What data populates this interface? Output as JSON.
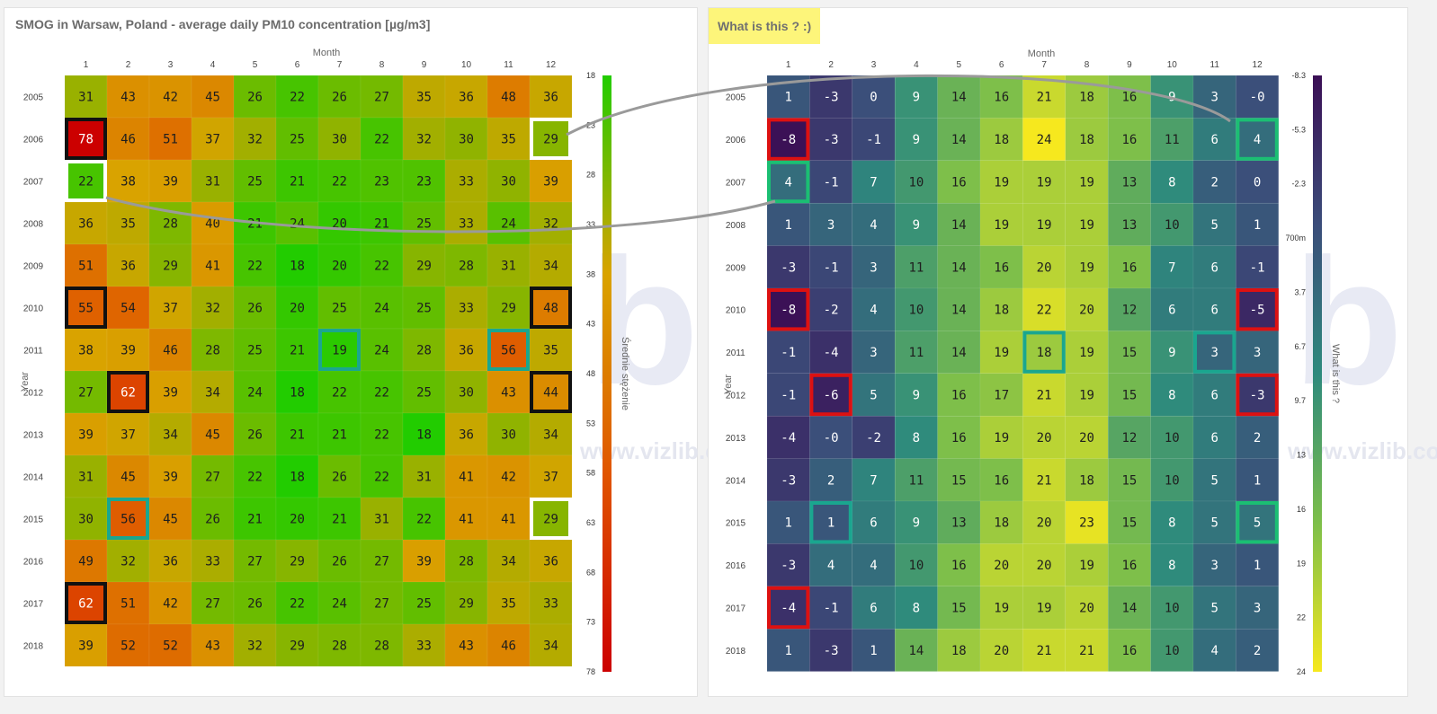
{
  "left_panel": {
    "title": "SMOG in Warsaw, Poland - average daily PM10 concentration [µg/m3]",
    "watermark": "www.vizlib.com"
  },
  "right_panel": {
    "title": "What is this ? :)",
    "watermark": "www.vizlib.com"
  },
  "chart_data": [
    {
      "type": "heatmap",
      "title": "SMOG in Warsaw, Poland - average daily PM10 concentration [µg/m3]",
      "xlabel": "Month",
      "ylabel": "Year",
      "x": [
        "1",
        "2",
        "3",
        "4",
        "5",
        "6",
        "7",
        "8",
        "9",
        "10",
        "11",
        "12"
      ],
      "y": [
        "2005",
        "2006",
        "2007",
        "2008",
        "2009",
        "2010",
        "2011",
        "2012",
        "2013",
        "2014",
        "2015",
        "2016",
        "2017",
        "2018"
      ],
      "values": [
        [
          31,
          43,
          42,
          45,
          26,
          22,
          26,
          27,
          35,
          36,
          48,
          36
        ],
        [
          78,
          46,
          51,
          37,
          32,
          25,
          30,
          22,
          32,
          30,
          35,
          29
        ],
        [
          22,
          38,
          39,
          31,
          25,
          21,
          22,
          23,
          23,
          33,
          30,
          39
        ],
        [
          36,
          35,
          28,
          40,
          21,
          24,
          20,
          21,
          25,
          33,
          24,
          32
        ],
        [
          51,
          36,
          29,
          41,
          22,
          18,
          20,
          22,
          29,
          28,
          31,
          34
        ],
        [
          55,
          54,
          37,
          32,
          26,
          20,
          25,
          24,
          25,
          33,
          29,
          48
        ],
        [
          38,
          39,
          46,
          28,
          25,
          21,
          19,
          24,
          28,
          36,
          56,
          35
        ],
        [
          27,
          62,
          39,
          34,
          24,
          18,
          22,
          22,
          25,
          30,
          43,
          44
        ],
        [
          39,
          37,
          34,
          45,
          26,
          21,
          21,
          22,
          18,
          36,
          30,
          34
        ],
        [
          31,
          45,
          39,
          27,
          22,
          18,
          26,
          22,
          31,
          41,
          42,
          37
        ],
        [
          30,
          56,
          45,
          26,
          21,
          20,
          21,
          31,
          22,
          41,
          41,
          29
        ],
        [
          49,
          32,
          36,
          33,
          27,
          29,
          26,
          27,
          39,
          28,
          34,
          36
        ],
        [
          62,
          51,
          42,
          27,
          26,
          22,
          24,
          27,
          25,
          29,
          35,
          33
        ],
        [
          39,
          52,
          52,
          43,
          32,
          29,
          28,
          28,
          33,
          43,
          46,
          34
        ]
      ],
      "color_scale": {
        "min": 18,
        "max": 78,
        "colors": [
          "#22cc00",
          "#d9a300",
          "#e05500",
          "#cc0000"
        ]
      },
      "legend_label": "Średnie stężenie",
      "legend_ticks": [
        "18",
        "23",
        "28",
        "33",
        "38",
        "43",
        "48",
        "53",
        "58",
        "63",
        "68",
        "73",
        "78"
      ],
      "highlights": [
        {
          "row": "2006",
          "col": "1",
          "color": "#111111"
        },
        {
          "row": "2007",
          "col": "1",
          "color": "#ffffff"
        },
        {
          "row": "2006",
          "col": "12",
          "color": "#ffffff"
        },
        {
          "row": "2010",
          "col": "1",
          "color": "#111111"
        },
        {
          "row": "2010",
          "col": "12",
          "color": "#111111"
        },
        {
          "row": "2011",
          "col": "7",
          "color": "#1aa68f"
        },
        {
          "row": "2011",
          "col": "11",
          "color": "#1aa68f"
        },
        {
          "row": "2012",
          "col": "2",
          "color": "#111111"
        },
        {
          "row": "2012",
          "col": "12",
          "color": "#111111"
        },
        {
          "row": "2015",
          "col": "2",
          "color": "#1aa68f"
        },
        {
          "row": "2015",
          "col": "12",
          "color": "#ffffff"
        },
        {
          "row": "2017",
          "col": "1",
          "color": "#111111"
        }
      ]
    },
    {
      "type": "heatmap",
      "title": "What is this ? :)",
      "xlabel": "Month",
      "ylabel": "Year",
      "x": [
        "1",
        "2",
        "3",
        "4",
        "5",
        "6",
        "7",
        "8",
        "9",
        "10",
        "11",
        "12"
      ],
      "y": [
        "2005",
        "2006",
        "2007",
        "2008",
        "2009",
        "2010",
        "2011",
        "2012",
        "2013",
        "2014",
        "2015",
        "2016",
        "2017",
        "2018"
      ],
      "cell_labels": [
        [
          "1",
          "-3",
          "0",
          "9",
          "14",
          "16",
          "21",
          "18",
          "16",
          "9",
          "3",
          "-0"
        ],
        [
          "-8",
          "-3",
          "-1",
          "9",
          "14",
          "18",
          "24",
          "18",
          "16",
          "11",
          "6",
          "4"
        ],
        [
          "4",
          "-1",
          "7",
          "10",
          "16",
          "19",
          "19",
          "19",
          "13",
          "8",
          "2",
          "0"
        ],
        [
          "1",
          "3",
          "4",
          "9",
          "14",
          "19",
          "19",
          "19",
          "13",
          "10",
          "5",
          "1"
        ],
        [
          "-3",
          "-1",
          "3",
          "11",
          "14",
          "16",
          "20",
          "19",
          "16",
          "7",
          "6",
          "-1"
        ],
        [
          "-8",
          "-2",
          "4",
          "10",
          "14",
          "18",
          "22",
          "20",
          "12",
          "6",
          "6",
          "-5"
        ],
        [
          "-1",
          "-4",
          "3",
          "11",
          "14",
          "19",
          "18",
          "19",
          "15",
          "9",
          "3",
          "3"
        ],
        [
          "-1",
          "-6",
          "5",
          "9",
          "16",
          "17",
          "21",
          "19",
          "15",
          "8",
          "6",
          "-3"
        ],
        [
          "-4",
          "-0",
          "-2",
          "8",
          "16",
          "19",
          "20",
          "20",
          "12",
          "10",
          "6",
          "2"
        ],
        [
          "-3",
          "2",
          "7",
          "11",
          "15",
          "16",
          "21",
          "18",
          "15",
          "10",
          "5",
          "1"
        ],
        [
          "1",
          "1",
          "6",
          "9",
          "13",
          "18",
          "20",
          "23",
          "15",
          "8",
          "5",
          "5"
        ],
        [
          "-3",
          "4",
          "4",
          "10",
          "16",
          "20",
          "20",
          "19",
          "16",
          "8",
          "3",
          "1"
        ],
        [
          "-4",
          "-1",
          "6",
          "8",
          "15",
          "19",
          "19",
          "20",
          "14",
          "10",
          "5",
          "3"
        ],
        [
          "1",
          "-3",
          "1",
          "14",
          "18",
          "20",
          "21",
          "21",
          "16",
          "10",
          "4",
          "2"
        ]
      ],
      "color_scale": {
        "min": -8.3,
        "max": 24,
        "colors": [
          "#3b0f55",
          "#3b4d7a",
          "#2e8a7d",
          "#7dbf4a",
          "#f6e81e"
        ]
      },
      "legend_label": "What is this ?",
      "legend_ticks": [
        "-8.3",
        "-5.3",
        "-2.3",
        "700m",
        "3.7",
        "6.7",
        "9.7",
        "13",
        "16",
        "19",
        "22",
        "24"
      ],
      "highlights": [
        {
          "row": "2006",
          "col": "1",
          "color": "#dd1111"
        },
        {
          "row": "2007",
          "col": "1",
          "color": "#1bbf73"
        },
        {
          "row": "2006",
          "col": "12",
          "color": "#1bbf73"
        },
        {
          "row": "2010",
          "col": "1",
          "color": "#dd1111"
        },
        {
          "row": "2010",
          "col": "12",
          "color": "#dd1111"
        },
        {
          "row": "2011",
          "col": "7",
          "color": "#1aa68f"
        },
        {
          "row": "2011",
          "col": "11",
          "color": "#1aa68f"
        },
        {
          "row": "2012",
          "col": "2",
          "color": "#dd1111"
        },
        {
          "row": "2012",
          "col": "12",
          "color": "#dd1111"
        },
        {
          "row": "2015",
          "col": "2",
          "color": "#1aa68f"
        },
        {
          "row": "2015",
          "col": "12",
          "color": "#1bbf73"
        },
        {
          "row": "2017",
          "col": "1",
          "color": "#dd1111"
        }
      ]
    }
  ]
}
